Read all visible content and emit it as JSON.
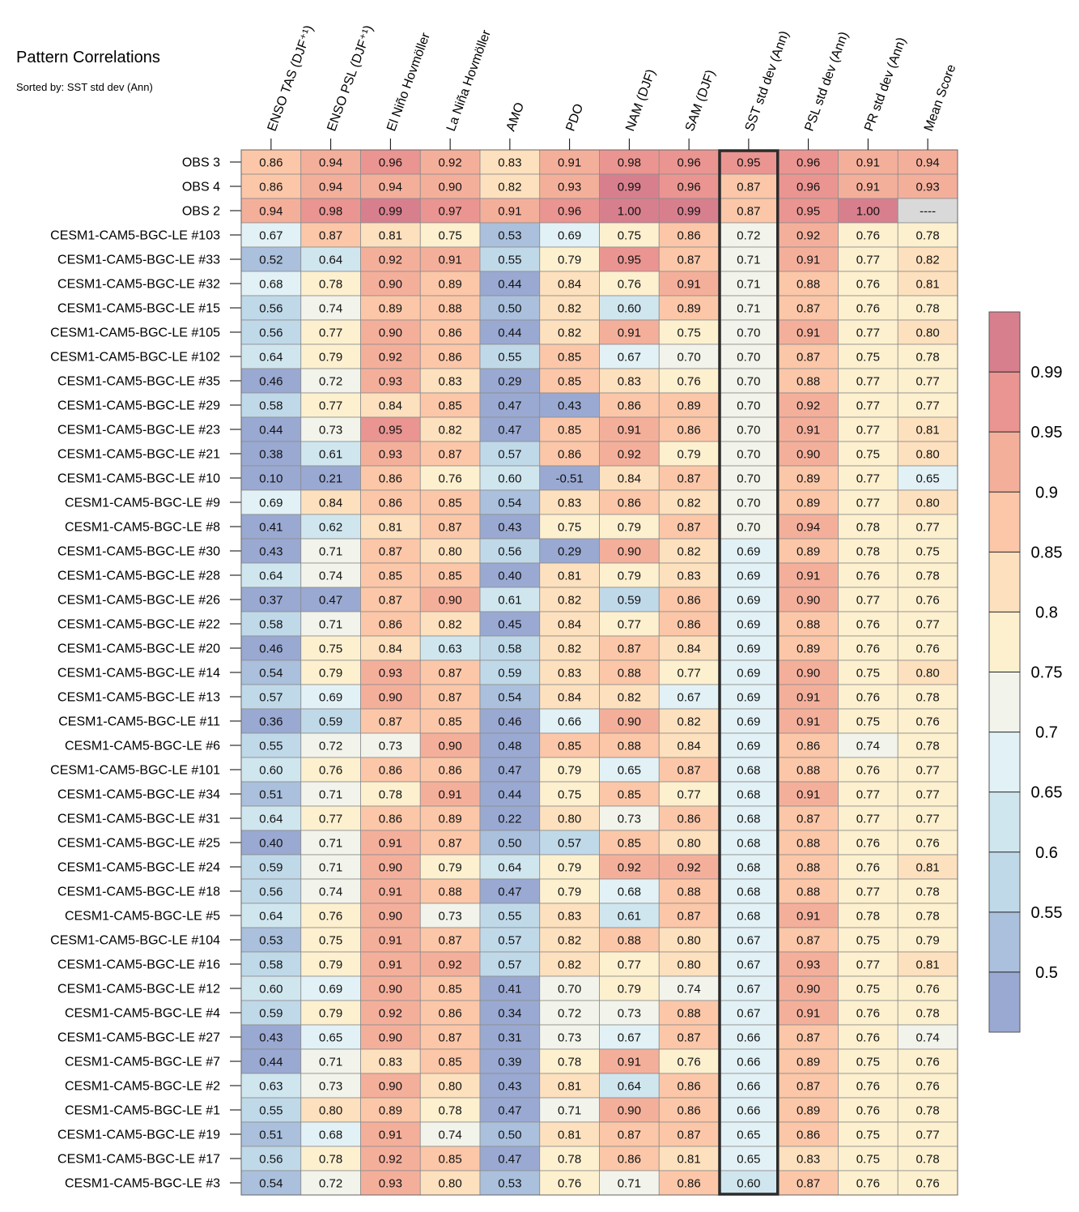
{
  "chart_data": {
    "type": "heatmap",
    "title": "Pattern Correlations",
    "subtitle": "Sorted by: SST std dev (Ann)",
    "columns": [
      "ENSO TAS (DJF⁺¹)",
      "ENSO PSL (DJF⁺¹)",
      "El Niño Hovmöller",
      "La Niña Hovmöller",
      "AMO",
      "PDO",
      "NAM (DJF)",
      "SAM (DJF)",
      "SST std dev (Ann)",
      "PSL std dev (Ann)",
      "PR std dev (Ann)",
      "Mean Score"
    ],
    "highlight_column": "SST std dev (Ann)",
    "missing_label": "----",
    "rows": [
      {
        "name": "OBS 3",
        "values": [
          0.86,
          0.94,
          0.96,
          0.92,
          0.83,
          0.91,
          0.98,
          0.96,
          0.95,
          0.96,
          0.91,
          0.94
        ]
      },
      {
        "name": "OBS 4",
        "values": [
          0.86,
          0.94,
          0.94,
          0.9,
          0.82,
          0.93,
          0.99,
          0.96,
          0.87,
          0.96,
          0.91,
          0.93
        ]
      },
      {
        "name": "OBS 2",
        "values": [
          0.94,
          0.98,
          0.99,
          0.97,
          0.91,
          0.96,
          1.0,
          0.99,
          0.87,
          0.95,
          1.0,
          null
        ]
      },
      {
        "name": "CESM1-CAM5-BGC-LE #103",
        "values": [
          0.67,
          0.87,
          0.81,
          0.75,
          0.53,
          0.69,
          0.75,
          0.86,
          0.72,
          0.92,
          0.76,
          0.78
        ]
      },
      {
        "name": "CESM1-CAM5-BGC-LE #33",
        "values": [
          0.52,
          0.64,
          0.92,
          0.91,
          0.55,
          0.79,
          0.95,
          0.87,
          0.71,
          0.91,
          0.77,
          0.82
        ]
      },
      {
        "name": "CESM1-CAM5-BGC-LE #32",
        "values": [
          0.68,
          0.78,
          0.9,
          0.89,
          0.44,
          0.84,
          0.76,
          0.91,
          0.71,
          0.88,
          0.76,
          0.81
        ]
      },
      {
        "name": "CESM1-CAM5-BGC-LE #15",
        "values": [
          0.56,
          0.74,
          0.89,
          0.88,
          0.5,
          0.82,
          0.6,
          0.89,
          0.71,
          0.87,
          0.76,
          0.78
        ]
      },
      {
        "name": "CESM1-CAM5-BGC-LE #105",
        "values": [
          0.56,
          0.77,
          0.9,
          0.86,
          0.44,
          0.82,
          0.91,
          0.75,
          0.7,
          0.91,
          0.77,
          0.8
        ]
      },
      {
        "name": "CESM1-CAM5-BGC-LE #102",
        "values": [
          0.64,
          0.79,
          0.92,
          0.86,
          0.55,
          0.85,
          0.67,
          0.7,
          0.7,
          0.87,
          0.75,
          0.78
        ]
      },
      {
        "name": "CESM1-CAM5-BGC-LE #35",
        "values": [
          0.46,
          0.72,
          0.93,
          0.83,
          0.29,
          0.85,
          0.83,
          0.76,
          0.7,
          0.88,
          0.77,
          0.77
        ]
      },
      {
        "name": "CESM1-CAM5-BGC-LE #29",
        "values": [
          0.58,
          0.77,
          0.84,
          0.85,
          0.47,
          0.43,
          0.86,
          0.89,
          0.7,
          0.92,
          0.77,
          0.77
        ]
      },
      {
        "name": "CESM1-CAM5-BGC-LE #23",
        "values": [
          0.44,
          0.73,
          0.95,
          0.82,
          0.47,
          0.85,
          0.91,
          0.86,
          0.7,
          0.91,
          0.77,
          0.81
        ]
      },
      {
        "name": "CESM1-CAM5-BGC-LE #21",
        "values": [
          0.38,
          0.61,
          0.93,
          0.87,
          0.57,
          0.86,
          0.92,
          0.79,
          0.7,
          0.9,
          0.75,
          0.8
        ]
      },
      {
        "name": "CESM1-CAM5-BGC-LE #10",
        "values": [
          0.1,
          0.21,
          0.86,
          0.76,
          0.6,
          -0.51,
          0.84,
          0.87,
          0.7,
          0.89,
          0.77,
          0.65
        ]
      },
      {
        "name": "CESM1-CAM5-BGC-LE #9",
        "values": [
          0.69,
          0.84,
          0.86,
          0.85,
          0.54,
          0.83,
          0.86,
          0.82,
          0.7,
          0.89,
          0.77,
          0.8
        ]
      },
      {
        "name": "CESM1-CAM5-BGC-LE #8",
        "values": [
          0.41,
          0.62,
          0.81,
          0.87,
          0.43,
          0.75,
          0.79,
          0.87,
          0.7,
          0.94,
          0.78,
          0.77
        ]
      },
      {
        "name": "CESM1-CAM5-BGC-LE #30",
        "values": [
          0.43,
          0.71,
          0.87,
          0.8,
          0.56,
          0.29,
          0.9,
          0.82,
          0.69,
          0.89,
          0.78,
          0.75
        ]
      },
      {
        "name": "CESM1-CAM5-BGC-LE #28",
        "values": [
          0.64,
          0.74,
          0.85,
          0.85,
          0.4,
          0.81,
          0.79,
          0.83,
          0.69,
          0.91,
          0.76,
          0.78
        ]
      },
      {
        "name": "CESM1-CAM5-BGC-LE #26",
        "values": [
          0.37,
          0.47,
          0.87,
          0.9,
          0.61,
          0.82,
          0.59,
          0.86,
          0.69,
          0.9,
          0.77,
          0.76
        ]
      },
      {
        "name": "CESM1-CAM5-BGC-LE #22",
        "values": [
          0.58,
          0.71,
          0.86,
          0.82,
          0.45,
          0.84,
          0.77,
          0.86,
          0.69,
          0.88,
          0.76,
          0.77
        ]
      },
      {
        "name": "CESM1-CAM5-BGC-LE #20",
        "values": [
          0.46,
          0.75,
          0.84,
          0.63,
          0.58,
          0.82,
          0.87,
          0.84,
          0.69,
          0.89,
          0.76,
          0.76
        ]
      },
      {
        "name": "CESM1-CAM5-BGC-LE #14",
        "values": [
          0.54,
          0.79,
          0.93,
          0.87,
          0.59,
          0.83,
          0.88,
          0.77,
          0.69,
          0.9,
          0.75,
          0.8
        ]
      },
      {
        "name": "CESM1-CAM5-BGC-LE #13",
        "values": [
          0.57,
          0.69,
          0.9,
          0.87,
          0.54,
          0.84,
          0.82,
          0.67,
          0.69,
          0.91,
          0.76,
          0.78
        ]
      },
      {
        "name": "CESM1-CAM5-BGC-LE #11",
        "values": [
          0.36,
          0.59,
          0.87,
          0.85,
          0.46,
          0.66,
          0.9,
          0.82,
          0.69,
          0.91,
          0.75,
          0.76
        ]
      },
      {
        "name": "CESM1-CAM5-BGC-LE #6",
        "values": [
          0.55,
          0.72,
          0.73,
          0.9,
          0.48,
          0.85,
          0.88,
          0.84,
          0.69,
          0.86,
          0.74,
          0.78
        ]
      },
      {
        "name": "CESM1-CAM5-BGC-LE #101",
        "values": [
          0.6,
          0.76,
          0.86,
          0.86,
          0.47,
          0.79,
          0.65,
          0.87,
          0.68,
          0.88,
          0.76,
          0.77
        ]
      },
      {
        "name": "CESM1-CAM5-BGC-LE #34",
        "values": [
          0.51,
          0.71,
          0.78,
          0.91,
          0.44,
          0.75,
          0.85,
          0.77,
          0.68,
          0.91,
          0.77,
          0.77
        ]
      },
      {
        "name": "CESM1-CAM5-BGC-LE #31",
        "values": [
          0.64,
          0.77,
          0.86,
          0.89,
          0.22,
          0.8,
          0.73,
          0.86,
          0.68,
          0.87,
          0.77,
          0.77
        ]
      },
      {
        "name": "CESM1-CAM5-BGC-LE #25",
        "values": [
          0.4,
          0.71,
          0.91,
          0.87,
          0.5,
          0.57,
          0.85,
          0.8,
          0.68,
          0.88,
          0.76,
          0.76
        ]
      },
      {
        "name": "CESM1-CAM5-BGC-LE #24",
        "values": [
          0.59,
          0.71,
          0.9,
          0.79,
          0.64,
          0.79,
          0.92,
          0.92,
          0.68,
          0.88,
          0.76,
          0.81
        ]
      },
      {
        "name": "CESM1-CAM5-BGC-LE #18",
        "values": [
          0.56,
          0.74,
          0.91,
          0.88,
          0.47,
          0.79,
          0.68,
          0.88,
          0.68,
          0.88,
          0.77,
          0.78
        ]
      },
      {
        "name": "CESM1-CAM5-BGC-LE #5",
        "values": [
          0.64,
          0.76,
          0.9,
          0.73,
          0.55,
          0.83,
          0.61,
          0.87,
          0.68,
          0.91,
          0.78,
          0.78
        ]
      },
      {
        "name": "CESM1-CAM5-BGC-LE #104",
        "values": [
          0.53,
          0.75,
          0.91,
          0.87,
          0.57,
          0.82,
          0.88,
          0.8,
          0.67,
          0.87,
          0.75,
          0.79
        ]
      },
      {
        "name": "CESM1-CAM5-BGC-LE #16",
        "values": [
          0.58,
          0.79,
          0.91,
          0.92,
          0.57,
          0.82,
          0.77,
          0.8,
          0.67,
          0.93,
          0.77,
          0.81
        ]
      },
      {
        "name": "CESM1-CAM5-BGC-LE #12",
        "values": [
          0.6,
          0.69,
          0.9,
          0.85,
          0.41,
          0.7,
          0.79,
          0.74,
          0.67,
          0.9,
          0.75,
          0.76
        ]
      },
      {
        "name": "CESM1-CAM5-BGC-LE #4",
        "values": [
          0.59,
          0.79,
          0.92,
          0.86,
          0.34,
          0.72,
          0.73,
          0.88,
          0.67,
          0.91,
          0.76,
          0.78
        ]
      },
      {
        "name": "CESM1-CAM5-BGC-LE #27",
        "values": [
          0.43,
          0.65,
          0.9,
          0.87,
          0.31,
          0.73,
          0.67,
          0.87,
          0.66,
          0.87,
          0.76,
          0.74
        ]
      },
      {
        "name": "CESM1-CAM5-BGC-LE #7",
        "values": [
          0.44,
          0.71,
          0.83,
          0.85,
          0.39,
          0.78,
          0.91,
          0.76,
          0.66,
          0.89,
          0.75,
          0.76
        ]
      },
      {
        "name": "CESM1-CAM5-BGC-LE #2",
        "values": [
          0.63,
          0.73,
          0.9,
          0.8,
          0.43,
          0.81,
          0.64,
          0.86,
          0.66,
          0.87,
          0.76,
          0.76
        ]
      },
      {
        "name": "CESM1-CAM5-BGC-LE #1",
        "values": [
          0.55,
          0.8,
          0.89,
          0.78,
          0.47,
          0.71,
          0.9,
          0.86,
          0.66,
          0.89,
          0.76,
          0.78
        ]
      },
      {
        "name": "CESM1-CAM5-BGC-LE #19",
        "values": [
          0.51,
          0.68,
          0.91,
          0.74,
          0.5,
          0.81,
          0.87,
          0.87,
          0.65,
          0.86,
          0.75,
          0.77
        ]
      },
      {
        "name": "CESM1-CAM5-BGC-LE #17",
        "values": [
          0.56,
          0.78,
          0.92,
          0.85,
          0.47,
          0.78,
          0.86,
          0.81,
          0.65,
          0.83,
          0.75,
          0.78
        ]
      },
      {
        "name": "CESM1-CAM5-BGC-LE #3",
        "values": [
          0.54,
          0.72,
          0.93,
          0.8,
          0.53,
          0.76,
          0.71,
          0.86,
          0.6,
          0.87,
          0.76,
          0.76
        ]
      }
    ],
    "colorbar": {
      "levels": [
        0.5,
        0.55,
        0.6,
        0.65,
        0.7,
        0.75,
        0.8,
        0.85,
        0.9,
        0.95,
        0.99
      ],
      "tick_labels": [
        "0.5",
        "0.55",
        "0.6",
        "0.65",
        "0.7",
        "0.75",
        "0.8",
        "0.85",
        "0.9",
        "0.95",
        "0.99"
      ],
      "colors": [
        "#9aa9d2",
        "#aac0dc",
        "#c0d9e9",
        "#d0e6ef",
        "#e2f1f5",
        "#f2f3ea",
        "#fdf0cf",
        "#fde0bd",
        "#fbc7a8",
        "#f4af9b",
        "#ea9591",
        "#d87f8e"
      ],
      "missing_color": "#d9d9d9"
    }
  }
}
